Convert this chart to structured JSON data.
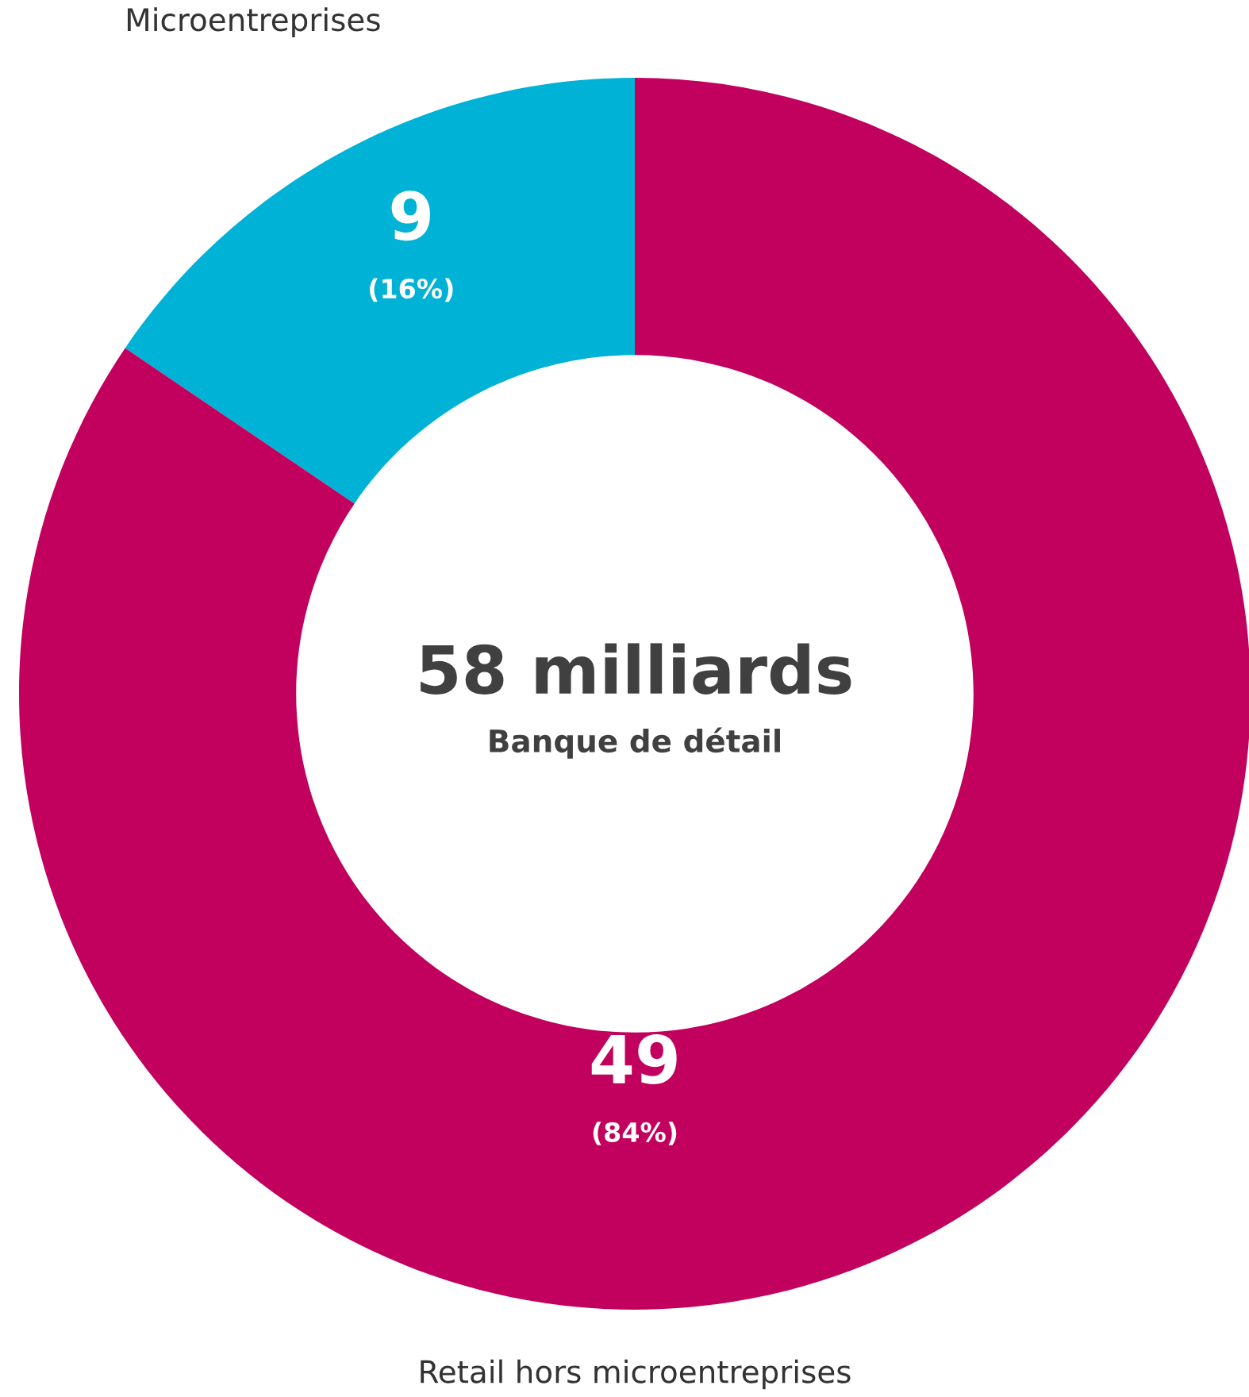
{
  "chart_data": {
    "type": "donut",
    "title": "58 milliards",
    "subtitle": "Banque de détail",
    "categories": [
      "Microentreprises",
      "Retail hors microentreprises"
    ],
    "values": [
      9,
      49
    ],
    "colors": [
      "#00b2d6",
      "#c2005e"
    ],
    "value_labels": [
      "9\n(16%)",
      "49\n(84%)"
    ],
    "legend": false
  }
}
